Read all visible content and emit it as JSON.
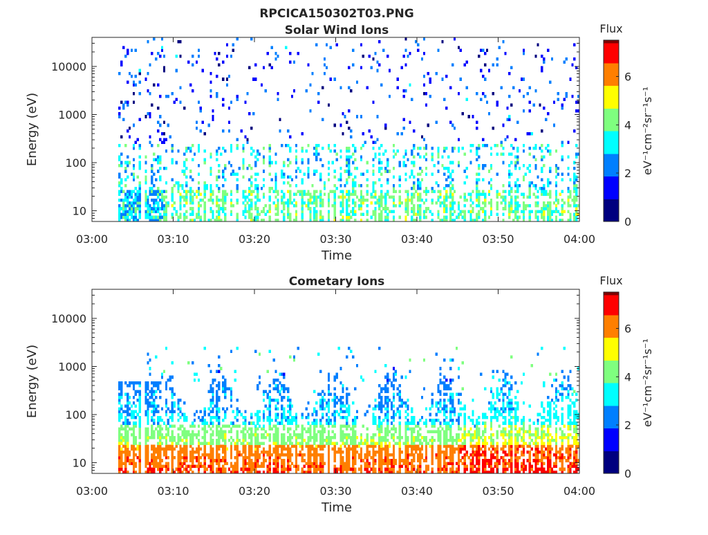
{
  "figure_title": "RPCICA150302T03.PNG",
  "palette": {
    "jet": [
      "#00007f",
      "#0000ff",
      "#007fff",
      "#00ffff",
      "#7fff7f",
      "#ffff00",
      "#ff7f00",
      "#ff0000",
      "#7f0000"
    ],
    "axis": "#262626",
    "background": "#ffffff"
  },
  "chart_data": [
    {
      "type": "heatmap",
      "title": "Solar Wind Ions",
      "xlabel": "Time",
      "ylabel": "Energy (eV)",
      "x_ticks": [
        "03:00",
        "03:10",
        "03:20",
        "03:30",
        "03:40",
        "03:50",
        "04:00"
      ],
      "xlim_minutes": [
        0,
        60
      ],
      "y_scale": "log",
      "ylim": [
        6,
        40000
      ],
      "y_ticks": [
        10,
        100,
        1000,
        10000
      ],
      "y_tick_labels": [
        "10",
        "100",
        "1000",
        "10000"
      ],
      "colorbar": {
        "title": "Flux",
        "label": "eV⁻¹cm⁻²sr⁻¹s⁻¹",
        "range": [
          0,
          7.5
        ],
        "ticks": [
          0,
          2,
          4,
          6
        ]
      },
      "grid": false
    },
    {
      "type": "heatmap",
      "title": "Cometary Ions",
      "xlabel": "Time",
      "ylabel": "Energy (eV)",
      "x_ticks": [
        "03:00",
        "03:10",
        "03:20",
        "03:30",
        "03:40",
        "03:50",
        "04:00"
      ],
      "xlim_minutes": [
        0,
        60
      ],
      "y_scale": "log",
      "ylim": [
        6,
        40000
      ],
      "y_ticks": [
        10,
        100,
        1000,
        10000
      ],
      "y_tick_labels": [
        "10",
        "100",
        "1000",
        "10000"
      ],
      "colorbar": {
        "title": "Flux",
        "label": "eV⁻¹cm⁻²sr⁻¹s⁻¹",
        "range": [
          0,
          7.5
        ],
        "ticks": [
          0,
          2,
          4,
          6
        ]
      },
      "grid": false
    }
  ]
}
